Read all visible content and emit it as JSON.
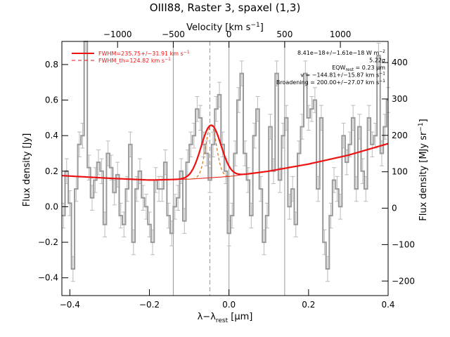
{
  "chart_data": {
    "type": "line",
    "title": "OIII88, Raster 3, spaxel (1,3)",
    "xlabel_main": "λ−λ",
    "xlabel_sub": "rest",
    "xlabel_unit": " [μm]",
    "ylabel_left": "Flux density [Jy]",
    "ylabel_right_main": "Flux density [MJy sr",
    "ylabel_right_sup": "−1",
    "ylabel_right_end": "]",
    "top_axis_label_main": "Velocity [km s",
    "top_axis_label_sup": "−1",
    "top_axis_label_end": "]",
    "xlim": [
      -0.42,
      0.4
    ],
    "ylim": [
      -0.5,
      0.93
    ],
    "right_ylim": [
      -240,
      458
    ],
    "x_ticks": [
      -0.4,
      -0.2,
      0.0,
      0.2,
      0.4
    ],
    "x_tick_labels": [
      "−0.4",
      "−0.2",
      "0.0",
      "0.2",
      "0.4"
    ],
    "y_ticks": [
      -0.4,
      -0.2,
      0.0,
      0.2,
      0.4,
      0.6,
      0.8
    ],
    "y_tick_labels": [
      "−0.4",
      "−0.2",
      "0.0",
      "0.2",
      "0.4",
      "0.6",
      "0.8"
    ],
    "right_ticks": [
      -200,
      -100,
      0,
      100,
      200,
      300,
      400
    ],
    "right_tick_labels": [
      "−200",
      "−100",
      "0",
      "100",
      "200",
      "300",
      "400"
    ],
    "top_ticks_x": [
      -0.453,
      -0.28,
      -0.14,
      0.0,
      0.14,
      0.28
    ],
    "top_tick_labels": [
      "−1000",
      "−500",
      "0",
      "500",
      "1000"
    ],
    "top_tick_label_x": [
      -0.28,
      -0.14,
      0.0,
      0.14,
      0.28
    ],
    "vlines_solid": [
      -0.14,
      0.0,
      0.14
    ],
    "vline_dashed": -0.048,
    "legend": [
      {
        "label": "FWHM=235.75+/−31.91 km s",
        "sup": "−1",
        "style": "solid",
        "color": "#ee1111"
      },
      {
        "label": "FWHM_th=124.82 km s",
        "sup": "−1",
        "style": "dashed",
        "color": "#ee1111"
      }
    ],
    "annotations": [
      {
        "text": "8.41e−18+/−1.61e−18 W m",
        "sup": "−2"
      },
      {
        "text": "5.22σ"
      },
      {
        "text": "EQW",
        "sub": "rest",
        "rest": " = 0.23 μm"
      },
      {
        "text": "v = −144.81+/−15.87 km s",
        "sup": "−1"
      },
      {
        "text": "Broadening = 200.00+/−27.07 km s",
        "sup": "−1"
      }
    ],
    "spectrum": {
      "x": [
        -0.42,
        -0.412,
        -0.404,
        -0.396,
        -0.388,
        -0.38,
        -0.372,
        -0.364,
        -0.356,
        -0.348,
        -0.34,
        -0.332,
        -0.324,
        -0.316,
        -0.308,
        -0.3,
        -0.292,
        -0.284,
        -0.276,
        -0.268,
        -0.26,
        -0.252,
        -0.244,
        -0.236,
        -0.228,
        -0.22,
        -0.212,
        -0.204,
        -0.196,
        -0.188,
        -0.18,
        -0.172,
        -0.164,
        -0.156,
        -0.148,
        -0.14,
        -0.132,
        -0.124,
        -0.116,
        -0.108,
        -0.1,
        -0.092,
        -0.084,
        -0.076,
        -0.068,
        -0.06,
        -0.052,
        -0.044,
        -0.036,
        -0.028,
        -0.02,
        -0.012,
        -0.004,
        0.004,
        0.012,
        0.02,
        0.028,
        0.036,
        0.044,
        0.052,
        0.06,
        0.068,
        0.076,
        0.084,
        0.092,
        0.1,
        0.108,
        0.116,
        0.124,
        0.132,
        0.14,
        0.148,
        0.156,
        0.164,
        0.172,
        0.18,
        0.188,
        0.196,
        0.204,
        0.212,
        0.22,
        0.228,
        0.236,
        0.244,
        0.252,
        0.26,
        0.268,
        0.276,
        0.284,
        0.292,
        0.3,
        0.308,
        0.316,
        0.324,
        0.332,
        0.34,
        0.348,
        0.356,
        0.364,
        0.372,
        0.38,
        0.388,
        0.396
      ],
      "y": [
        -0.05,
        0.2,
        0.02,
        -0.35,
        0.1,
        0.35,
        0.4,
        0.93,
        0.22,
        0.05,
        0.15,
        0.25,
        0.2,
        -0.1,
        0.3,
        0.22,
        0.08,
        0.18,
        -0.05,
        -0.1,
        0.1,
        0.35,
        -0.2,
        0.1,
        0.2,
        0.05,
        0.0,
        -0.1,
        -0.2,
        0.15,
        0.1,
        0.1,
        0.25,
        -0.05,
        -0.15,
        0.0,
        0.05,
        0.2,
        -0.08,
        0.25,
        0.35,
        0.4,
        0.55,
        0.5,
        0.35,
        0.3,
        0.15,
        0.35,
        0.55,
        0.63,
        0.35,
        0.2,
        -0.15,
        -0.05,
        0.3,
        0.6,
        0.75,
        0.3,
        0.15,
        -0.05,
        0.4,
        0.55,
        0.1,
        -0.2,
        -0.05,
        0.45,
        0.2,
        0.75,
        0.15,
        0.4,
        0.5,
        0.0,
        0.1,
        -0.1,
        0.3,
        0.45,
        0.75,
        0.5,
        0.55,
        0.6,
        0.1,
        0.5,
        -0.2,
        -0.35,
        -0.05,
        0.15,
        0.1,
        0.0,
        0.4,
        0.25,
        0.35,
        0.5,
        0.1,
        0.45,
        0.2,
        0.1,
        0.5,
        0.35,
        0.4,
        0.85,
        0.3,
        0.45,
        0.6
      ],
      "error": 0.07,
      "color": "#999999"
    },
    "fit": {
      "baseline_points": {
        "x": [
          -0.42,
          -0.3,
          -0.2,
          -0.1,
          0.0,
          0.1,
          0.2,
          0.3,
          0.4
        ],
        "y": [
          0.175,
          0.16,
          0.15,
          0.155,
          0.17,
          0.2,
          0.24,
          0.29,
          0.355
        ]
      },
      "line_center": -0.045,
      "line_amplitude": 0.295,
      "line_sigma": 0.025,
      "thermal_sigma": 0.0135,
      "fit_color": "#ee1111",
      "thermal_color": "#cc7722"
    }
  }
}
